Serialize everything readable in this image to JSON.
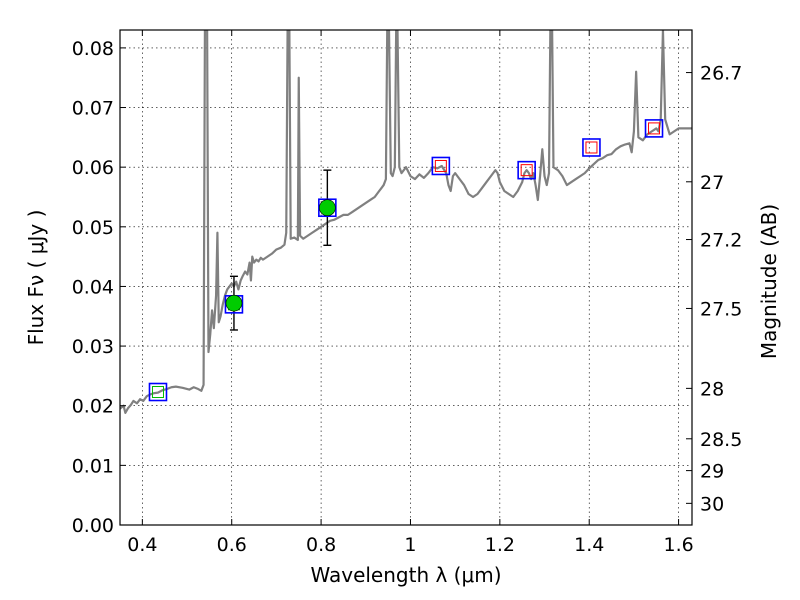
{
  "chart_data": {
    "type": "line",
    "xlabel": "Wavelength  λ (μm)",
    "ylabel": "Flux  Fν  ( μJy )",
    "ylabel_right": "Magnitude (AB)",
    "xlim": [
      0.35,
      1.63
    ],
    "ylim": [
      0.0,
      0.083
    ],
    "grid": true,
    "x_ticks": [
      {
        "value": 0.4,
        "label": "0.4"
      },
      {
        "value": 0.6,
        "label": "0.6"
      },
      {
        "value": 0.8,
        "label": "0.8"
      },
      {
        "value": 1.0,
        "label": "1"
      },
      {
        "value": 1.2,
        "label": "1.2"
      },
      {
        "value": 1.4,
        "label": "1.4"
      },
      {
        "value": 1.6,
        "label": "1.6"
      }
    ],
    "y_ticks": [
      {
        "value": 0.0,
        "label": "0.00"
      },
      {
        "value": 0.01,
        "label": "0.01"
      },
      {
        "value": 0.02,
        "label": "0.02"
      },
      {
        "value": 0.03,
        "label": "0.03"
      },
      {
        "value": 0.04,
        "label": "0.04"
      },
      {
        "value": 0.05,
        "label": "0.05"
      },
      {
        "value": 0.06,
        "label": "0.06"
      },
      {
        "value": 0.07,
        "label": "0.07"
      },
      {
        "value": 0.08,
        "label": "0.08"
      }
    ],
    "mag_ticks": [
      {
        "value": 26.7,
        "label": "26.7"
      },
      {
        "value": 27.0,
        "label": "27"
      },
      {
        "value": 27.2,
        "label": "27.2"
      },
      {
        "value": 27.5,
        "label": "27.5"
      },
      {
        "value": 28.0,
        "label": "28"
      },
      {
        "value": 28.5,
        "label": "28.5"
      },
      {
        "value": 29.0,
        "label": "29"
      },
      {
        "value": 30.0,
        "label": "30"
      }
    ],
    "spectrum": {
      "color": "#808080",
      "points": [
        [
          0.35,
          0.0195
        ],
        [
          0.358,
          0.02
        ],
        [
          0.362,
          0.0188
        ],
        [
          0.368,
          0.0196
        ],
        [
          0.374,
          0.0201
        ],
        [
          0.38,
          0.0208
        ],
        [
          0.388,
          0.0204
        ],
        [
          0.395,
          0.0211
        ],
        [
          0.402,
          0.0208
        ],
        [
          0.41,
          0.0216
        ],
        [
          0.418,
          0.0219
        ],
        [
          0.426,
          0.0221
        ],
        [
          0.435,
          0.0222
        ],
        [
          0.445,
          0.0226
        ],
        [
          0.455,
          0.0228
        ],
        [
          0.465,
          0.0231
        ],
        [
          0.475,
          0.0232
        ],
        [
          0.49,
          0.023
        ],
        [
          0.505,
          0.0227
        ],
        [
          0.515,
          0.0231
        ],
        [
          0.525,
          0.0228
        ],
        [
          0.532,
          0.0225
        ],
        [
          0.537,
          0.0235
        ],
        [
          0.54,
          0.083
        ],
        [
          0.545,
          0.083
        ],
        [
          0.548,
          0.029
        ],
        [
          0.552,
          0.032
        ],
        [
          0.556,
          0.036
        ],
        [
          0.56,
          0.033
        ],
        [
          0.565,
          0.0385
        ],
        [
          0.568,
          0.049
        ],
        [
          0.571,
          0.034
        ],
        [
          0.575,
          0.035
        ],
        [
          0.58,
          0.037
        ],
        [
          0.585,
          0.0385
        ],
        [
          0.59,
          0.0395
        ],
        [
          0.595,
          0.04
        ],
        [
          0.6,
          0.0405
        ],
        [
          0.605,
          0.04
        ],
        [
          0.61,
          0.0408
        ],
        [
          0.615,
          0.0395
        ],
        [
          0.62,
          0.041
        ],
        [
          0.625,
          0.0418
        ],
        [
          0.63,
          0.0425
        ],
        [
          0.635,
          0.042
        ],
        [
          0.64,
          0.044
        ],
        [
          0.643,
          0.041
        ],
        [
          0.646,
          0.045
        ],
        [
          0.65,
          0.044
        ],
        [
          0.655,
          0.0445
        ],
        [
          0.66,
          0.0442
        ],
        [
          0.665,
          0.0448
        ],
        [
          0.67,
          0.0445
        ],
        [
          0.68,
          0.045
        ],
        [
          0.69,
          0.0455
        ],
        [
          0.7,
          0.0462
        ],
        [
          0.71,
          0.0465
        ],
        [
          0.718,
          0.047
        ],
        [
          0.722,
          0.049
        ],
        [
          0.725,
          0.083
        ],
        [
          0.729,
          0.083
        ],
        [
          0.732,
          0.048
        ],
        [
          0.74,
          0.0482
        ],
        [
          0.748,
          0.0478
        ],
        [
          0.75,
          0.075
        ],
        [
          0.753,
          0.0485
        ],
        [
          0.76,
          0.048
        ],
        [
          0.77,
          0.0485
        ],
        [
          0.78,
          0.049
        ],
        [
          0.79,
          0.0495
        ],
        [
          0.8,
          0.05
        ],
        [
          0.81,
          0.0505
        ],
        [
          0.82,
          0.051
        ],
        [
          0.83,
          0.0512
        ],
        [
          0.84,
          0.0516
        ],
        [
          0.85,
          0.052
        ],
        [
          0.86,
          0.052
        ],
        [
          0.87,
          0.0525
        ],
        [
          0.88,
          0.053
        ],
        [
          0.89,
          0.0535
        ],
        [
          0.9,
          0.054
        ],
        [
          0.91,
          0.0545
        ],
        [
          0.92,
          0.055
        ],
        [
          0.93,
          0.056
        ],
        [
          0.94,
          0.057
        ],
        [
          0.945,
          0.058
        ],
        [
          0.948,
          0.083
        ],
        [
          0.952,
          0.083
        ],
        [
          0.956,
          0.059
        ],
        [
          0.96,
          0.0585
        ],
        [
          0.965,
          0.06
        ],
        [
          0.968,
          0.083
        ],
        [
          0.971,
          0.083
        ],
        [
          0.975,
          0.06
        ],
        [
          0.98,
          0.059
        ],
        [
          0.99,
          0.06
        ],
        [
          1.0,
          0.0585
        ],
        [
          1.01,
          0.058
        ],
        [
          1.02,
          0.0588
        ],
        [
          1.03,
          0.0582
        ],
        [
          1.04,
          0.059
        ],
        [
          1.05,
          0.06
        ],
        [
          1.06,
          0.0598
        ],
        [
          1.07,
          0.0602
        ],
        [
          1.08,
          0.059
        ],
        [
          1.085,
          0.057
        ],
        [
          1.09,
          0.056
        ],
        [
          1.095,
          0.0585
        ],
        [
          1.1,
          0.059
        ],
        [
          1.11,
          0.058
        ],
        [
          1.12,
          0.057
        ],
        [
          1.13,
          0.0555
        ],
        [
          1.14,
          0.055
        ],
        [
          1.15,
          0.0555
        ],
        [
          1.16,
          0.0565
        ],
        [
          1.17,
          0.0575
        ],
        [
          1.18,
          0.0585
        ],
        [
          1.19,
          0.0595
        ],
        [
          1.195,
          0.059
        ],
        [
          1.2,
          0.0575
        ],
        [
          1.21,
          0.056
        ],
        [
          1.22,
          0.0555
        ],
        [
          1.23,
          0.055
        ],
        [
          1.24,
          0.056
        ],
        [
          1.25,
          0.0575
        ],
        [
          1.255,
          0.059
        ],
        [
          1.26,
          0.0595
        ],
        [
          1.265,
          0.059
        ],
        [
          1.27,
          0.058
        ],
        [
          1.275,
          0.059
        ],
        [
          1.28,
          0.057
        ],
        [
          1.285,
          0.0545
        ],
        [
          1.29,
          0.0585
        ],
        [
          1.295,
          0.063
        ],
        [
          1.3,
          0.0585
        ],
        [
          1.305,
          0.057
        ],
        [
          1.31,
          0.059
        ],
        [
          1.313,
          0.083
        ],
        [
          1.317,
          0.083
        ],
        [
          1.32,
          0.06
        ],
        [
          1.33,
          0.0595
        ],
        [
          1.34,
          0.0585
        ],
        [
          1.35,
          0.057
        ],
        [
          1.36,
          0.0575
        ],
        [
          1.37,
          0.058
        ],
        [
          1.38,
          0.0585
        ],
        [
          1.39,
          0.059
        ],
        [
          1.4,
          0.0598
        ],
        [
          1.41,
          0.0605
        ],
        [
          1.42,
          0.0612
        ],
        [
          1.43,
          0.0615
        ],
        [
          1.44,
          0.062
        ],
        [
          1.45,
          0.0622
        ],
        [
          1.46,
          0.063
        ],
        [
          1.47,
          0.0635
        ],
        [
          1.48,
          0.0638
        ],
        [
          1.49,
          0.064
        ],
        [
          1.495,
          0.0625
        ],
        [
          1.5,
          0.066
        ],
        [
          1.505,
          0.076
        ],
        [
          1.51,
          0.065
        ],
        [
          1.52,
          0.0645
        ],
        [
          1.53,
          0.0655
        ],
        [
          1.54,
          0.066
        ],
        [
          1.55,
          0.0665
        ],
        [
          1.555,
          0.066
        ],
        [
          1.56,
          0.068
        ],
        [
          1.565,
          0.083
        ],
        [
          1.57,
          0.068
        ],
        [
          1.58,
          0.0655
        ],
        [
          1.59,
          0.066
        ],
        [
          1.6,
          0.0665
        ],
        [
          1.61,
          0.0665
        ],
        [
          1.62,
          0.0665
        ],
        [
          1.63,
          0.0665
        ]
      ]
    },
    "model_points": {
      "shape": "square",
      "edge_color": "#0000ff",
      "points": [
        {
          "x": 0.435,
          "y": 0.0223,
          "inner_color": "#00bb00"
        },
        {
          "x": 0.605,
          "y": 0.037,
          "inner_color": "#00bb00"
        },
        {
          "x": 0.814,
          "y": 0.0532,
          "inner_color": "#00bb00"
        },
        {
          "x": 1.068,
          "y": 0.0602,
          "inner_color": "#ff0000"
        },
        {
          "x": 1.26,
          "y": 0.0595,
          "inner_color": "#ff0000"
        },
        {
          "x": 1.405,
          "y": 0.0633,
          "inner_color": "#ff0000"
        },
        {
          "x": 1.545,
          "y": 0.0665,
          "inner_color": "#ff0000"
        }
      ]
    },
    "observed_points": {
      "marker": "circle",
      "color": "#00cc00",
      "errorbar_color": "#000000",
      "points": [
        {
          "x": 0.605,
          "y": 0.0372,
          "yerr": 0.0045
        },
        {
          "x": 0.814,
          "y": 0.0532,
          "yerr": 0.0063
        }
      ]
    }
  }
}
